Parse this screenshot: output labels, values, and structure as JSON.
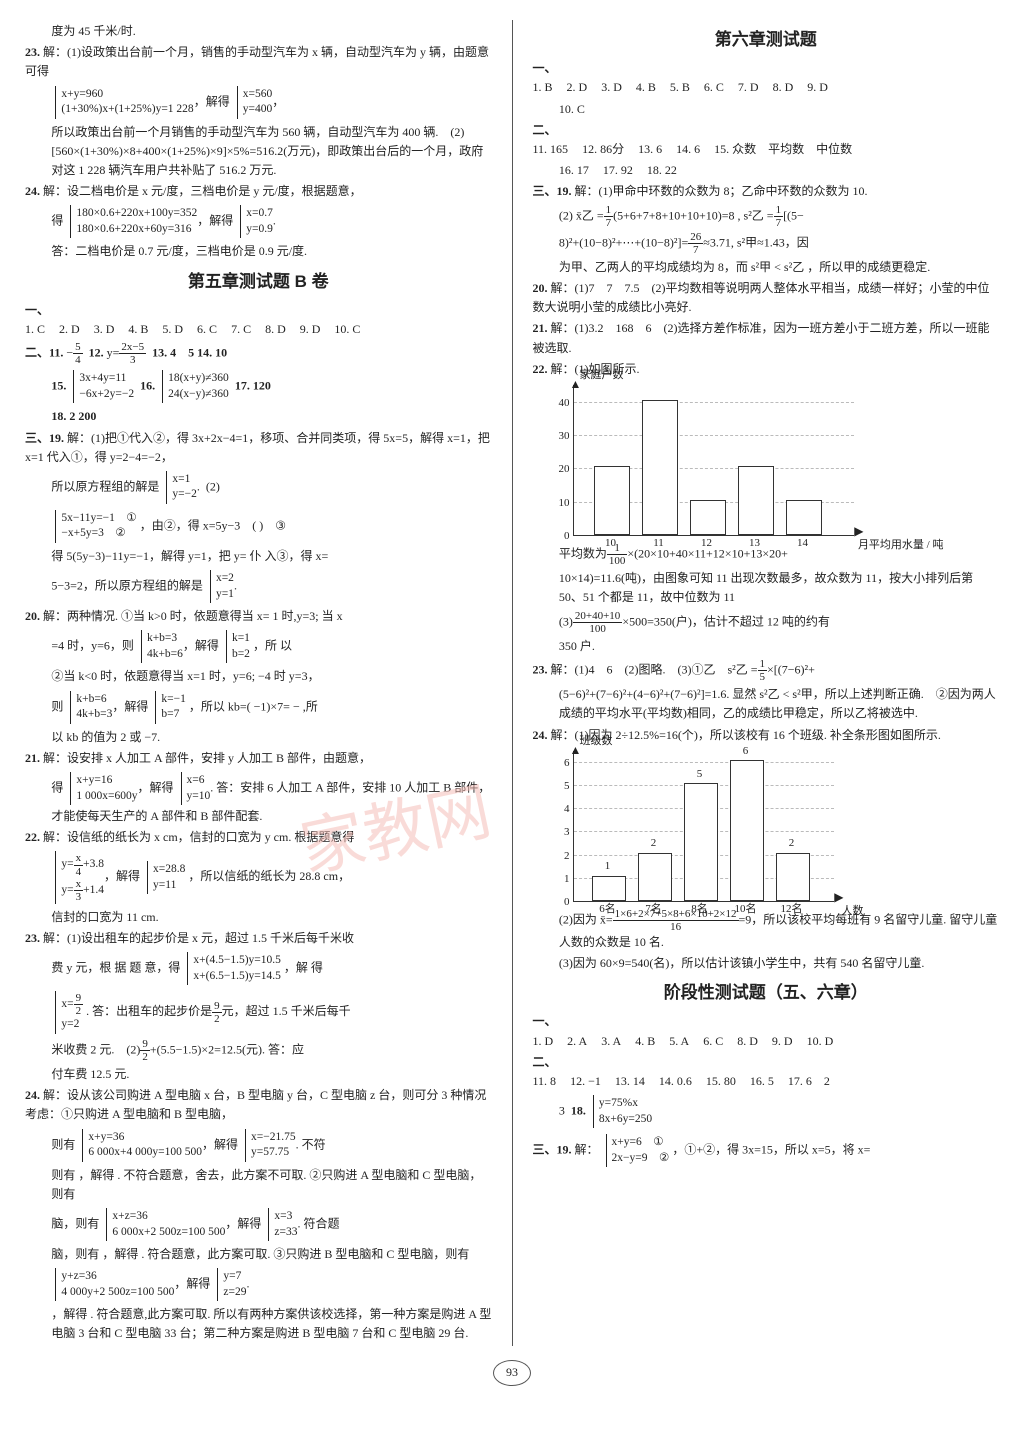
{
  "left": {
    "p0": "度为 45 千米/时.",
    "p23_1": "解：(1)设政策出台前一个月，销售的手动型汽车为 x 辆，自动型汽车为 y 辆，由题意可得",
    "p23_eq1": [
      "x+y=960",
      "(1+30%)x+(1+25%)y=1 228"
    ],
    "p23_eq1r": [
      "x=560",
      "y=400"
    ],
    "p23_2": "所以政策出台前一个月销售的手动型汽车为 560 辆，自动型汽车为 400 辆. (2)[560×(1+30%)×8+400×(1+25%)×9]×5%=516.2(万元)，即政策出台后的一个月，政府对这 1 228 辆汽车用户共补贴了 516.2 万元.",
    "p24_1": "解：设二档电价是 x 元/度，三档电价是 y 元/度，根据题意，",
    "p24_eq1": [
      "180×0.6+220x+100y=352",
      "180×0.6+220x+60y=316"
    ],
    "p24_eq1r": [
      "x=0.7",
      "y=0.9"
    ],
    "p24_2": "答：二档电价是 0.7 元/度，三档电价是 0.9 元/度.",
    "title2": "第五章测试题 B 卷",
    "sec1": [
      "1. C",
      "2. D",
      "3. D",
      "4. B",
      "5. D",
      "6. C",
      "7. C",
      "8. D",
      "9. D",
      "10. C"
    ],
    "q11a": "11.",
    "q11b": "12.",
    "q12v": "y=",
    "q12fr": {
      "n": "2x−5",
      "d": "3"
    },
    "q13": "13. 4 5",
    "q14": "14. 10",
    "q15": "15.",
    "q15eq": [
      "3x+4y=11",
      "−6x+2y=−2"
    ],
    "q16": "16.",
    "q16eq": [
      "18(x+y)≠360",
      "24(x−y)≠360"
    ],
    "q17": "17. 120",
    "q18": "18. 2 200",
    "q19_1": "解：(1)把①代入②，得 3x+2x−4=1，移项、合并同类项，得 5x=5，解得 x=1，把 x=1 代入①，得 y=2−4=−2，",
    "q19_2": "所以原方程组的解是",
    "q19_eq": [
      "x=1",
      "y=−2"
    ],
    "q19_3": "(2)",
    "q19_eq2": [
      "5x−11y=−1 ①",
      "−x+5y=3 ②"
    ],
    "q19_4": "，由②，得 x=5y−3 ( ) ③",
    "q19_5": "得 5(5y−3)−11y=−1，解得 y=1，把 y= 仆 入③，得 x=",
    "q19_6": "5−3=2，所以原方程组的解是",
    "q19_eq3": [
      "x=2",
      "y=1"
    ],
    "q20_1": "解：两种情况. ①当 k>0 时，依题意得当 x= 1 时,y=3; 当 x",
    "q20_2": "=4 时，y=6，则",
    "q20_eq1": [
      "k+b=3",
      "4k+b=6"
    ],
    "q20_eq1r": [
      "k=1",
      "b=2"
    ],
    "q20_3": "，所 以",
    "q20_4": "②当 k<0 时，依题意得当 x=1 时，y=6; −4 时 y=3，",
    "q20_5": "则",
    "q20_eq2": [
      "k+b=6",
      "4k+b=3"
    ],
    "q20_eq2r": [
      "k=−1",
      "b=7"
    ],
    "q20_6": "，所以 kb=( −1)×7= − ,所",
    "q20_7": "以 kb 的值为 2 或 −7.",
    "q21_1": "解：设安排 x 人加工 A 部件，安排 y 人加工 B 部件，由题意，",
    "q21_eq": [
      "x+y=16",
      "1 000x=600y"
    ],
    "q21_eqr": [
      "x=6",
      "y=10"
    ],
    "q21_2": "答：安排 6 人加工 A 部件，安排 10 人加工 B 部件，才能使每天生产的 A 部件和 B 部件配套.",
    "q22_1": "解：设信纸的纸长为 x cm，信封的口宽为 y cm. 根据题意得",
    "q22_eqA": [
      "y=",
      "+3.8"
    ],
    "q22_eqB": [
      "y=",
      "+1.4"
    ],
    "q22_eqr": [
      "x=28.8",
      "y=11"
    ],
    "q22_2": "，所以信纸的纸长为 28.8 cm，",
    "q22_3": "信封的口宽为 11 cm.",
    "q23b_1": "解：(1)设出租车的起步价是 x 元，超过 1.5 千米后每千米收",
    "q23b_2": "费 y 元，根 据 题 意，得",
    "q23b_eq": [
      "x+(4.5−1.5)y=10.5",
      "x+(6.5−1.5)y=14.5"
    ],
    "q23b_3": "，解 得",
    "q23b_eqr": [
      "x=",
      "y=2"
    ],
    "q23b_4": ". 答：出租车的起步价是",
    "q23b_5": "元，超过 1.5 千米后每千",
    "q23b_6": "米收费 2 元. (2)",
    "q23b_6b": "+(5.5−1.5)×2=12.5(元). 答：应",
    "q23b_7": "付车费 12.5 元.",
    "q24b_1": "解：设从该公司购进 A 型电脑 x 台，B 型电脑 y 台，C 型电脑 z 台，则可分 3 种情况考虑：①只购进 A 型电脑和 B 型电脑，",
    "q24b_eq1": [
      "x+y=36",
      "6 000x+4 000y=100 500"
    ],
    "q24b_eq1r": [
      "x=−21.75",
      "y=57.75"
    ],
    "q24b_2": "则有 ，解得 . 不符合题意，舍去，此方案不可取. ②只购进 A 型电脑和 C 型电脑，则有",
    "q24b_eq2": [
      "x+z=36",
      "6 000x+2 500z=100 500"
    ],
    "q24b_eq2r": [
      "x=3",
      "z=33"
    ],
    "q24b_3": "脑，则有 ，解得 . 符合题意，此方案可取. ③只购进 B 型电脑和 C 型电脑，则有",
    "q24b_eq3": [
      "y+z=36",
      "4 000y+2 500z=100 500"
    ],
    "q24b_eq3r": [
      "y=7",
      "z=29"
    ],
    "q24b_4": "，解得 . 符合题意,此方案可取. 所以有两种方案供该校选择，第一种方案是购进 A 型电脑 3 台和 C 型电脑 33 台；第二种方案是购进 B 型电脑 7 台和 C 型电脑 29 台."
  },
  "right": {
    "title": "第六章测试题",
    "sec1": [
      "1. B",
      "2. D",
      "3. D",
      "4. B",
      "5. B",
      "6. C",
      "7. D",
      "8. D",
      "9. D",
      "10. C"
    ],
    "sec2": [
      "11. 165",
      "12. 86分",
      "13. 6",
      "14. 6",
      "15. 众数 平均数 中位数",
      "16. 17",
      "17. 92",
      "18. 22"
    ],
    "q19_1": "解：(1)甲命中环数的众数为 8；乙命中环数的众数为 10.",
    "q19_2a": "(2)  x̄乙 =",
    "q19_2b": "(5+6+7+8+10+10+10)=8 , s²乙 =",
    "q19_2c": "[(5−",
    "q19_3": "8)²+(10−8)²+⋯+(10−8)²]=",
    "q19_3b": "≈3.71, s²甲≈1.43，因",
    "q19_4": "为甲、乙两人的平均成绩均为 8，而 s²甲 < s²乙 ，所以甲的成绩更稳定.",
    "q20_1": "解：(1)7 7 7.5 (2)平均数相等说明两人整体水平相当，成绩一样好；小莹的中位数大说明小莹的成绩比小亮好.",
    "q21_1": "解：(1)3.2 168 6 (2)选择方差作标准，因为一班方差小于二班方差，所以一班能被选取.",
    "q22_1": "解：(1)如图所示.",
    "chart1": {
      "ylabel": "家庭户数",
      "xlabel": "月平均用水量 / 吨",
      "ymax": 45,
      "yticks": [
        10,
        20,
        30,
        40
      ],
      "xticks": [
        "10",
        "11",
        "12",
        "13",
        "14"
      ],
      "bars": [
        {
          "x": 0,
          "h": 20,
          "color": "#ffffff"
        },
        {
          "x": 1,
          "h": 40,
          "color": "#ffffff"
        },
        {
          "x": 2,
          "h": 10,
          "color": "#ffffff"
        },
        {
          "x": 3,
          "h": 20,
          "color": "#ffffff"
        },
        {
          "x": 4,
          "h": 10,
          "color": "#ffffff"
        }
      ]
    },
    "q22_2a": "平均数为",
    "q22_2b": "×(20×10+40×11+12×10+13×20+",
    "q22_3": "10×14)=11.6(吨)，由图象可知 11 出现次数最多，故众数为 11，按大小排列后第 50、51 个都是 11，故中位数为 11",
    "q22_4a": "(3)",
    "q22_4b": "×500=350(户)，估计不超过 12 吨的约有",
    "q22_5": "350 户.",
    "q23_1": "解：(1)4 6 (2)图略. (3)①乙 s²乙 =",
    "q23_1b": "×[(7−6)²+",
    "q23_2": "(5−6)²+(7−6)²+(4−6)²+(7−6)²]=1.6. 显然 s²乙 < s²甲，所以上述判断正确. ②因为两人成绩的平均水平(平均数)相同，乙的成绩比甲稳定，所以乙将被选中.",
    "q24_1": "解：(1)因为 2÷12.5%=16(个)，所以该校有 16 个班级. 补全条形图如图所示.",
    "chart2": {
      "ylabel": "班级数",
      "xlabel": "人数",
      "ymax": 6.5,
      "yticks": [
        1,
        2,
        3,
        4,
        5,
        6
      ],
      "xticks": [
        "6名",
        "7名",
        "8名",
        "10名",
        "12名"
      ],
      "bars": [
        {
          "x": 0,
          "h": 1,
          "label": "1"
        },
        {
          "x": 1,
          "h": 2,
          "label": "2"
        },
        {
          "x": 2,
          "h": 5,
          "label": "5"
        },
        {
          "x": 3,
          "h": 6,
          "label": "6"
        },
        {
          "x": 4,
          "h": 2,
          "label": "2"
        }
      ]
    },
    "q24_2a": "(2)因为 x̄=",
    "q24_2n": "1×6+2×7+5×8+6×10+2×12",
    "q24_2d": "16",
    "q24_2b": "=9，所以该校平均每班有 9 名留守儿童. 留守儿童人数的众数是 10 名.",
    "q24_3": "(3)因为 60×9=540(名)，所以估计该镇小学生中，共有 540 名留守儿童.",
    "title2": "阶段性测试题（五、六章）",
    "s2sec1": [
      "1. D",
      "2. A",
      "3. A",
      "4. B",
      "5. A",
      "6. C",
      "8. D",
      "9. D",
      "10. D"
    ],
    "s2sec2": [
      "11. 8",
      "12. −1",
      "13. 14",
      "14. 0.6",
      "15. 80",
      "16. 5",
      "17. 6 2"
    ],
    "s2q17b": "3",
    "s2q18": "18.",
    "s2q18eq": [
      "y=75%x",
      "8x+6y=250"
    ],
    "s2q19a": "解：",
    "s2q19eq": [
      "x+y=6 ①",
      "2x−y=9 ②"
    ],
    "s2q19b": "，①+②，得 3x=15，所以 x=5，将 x="
  },
  "pagenum": "93"
}
